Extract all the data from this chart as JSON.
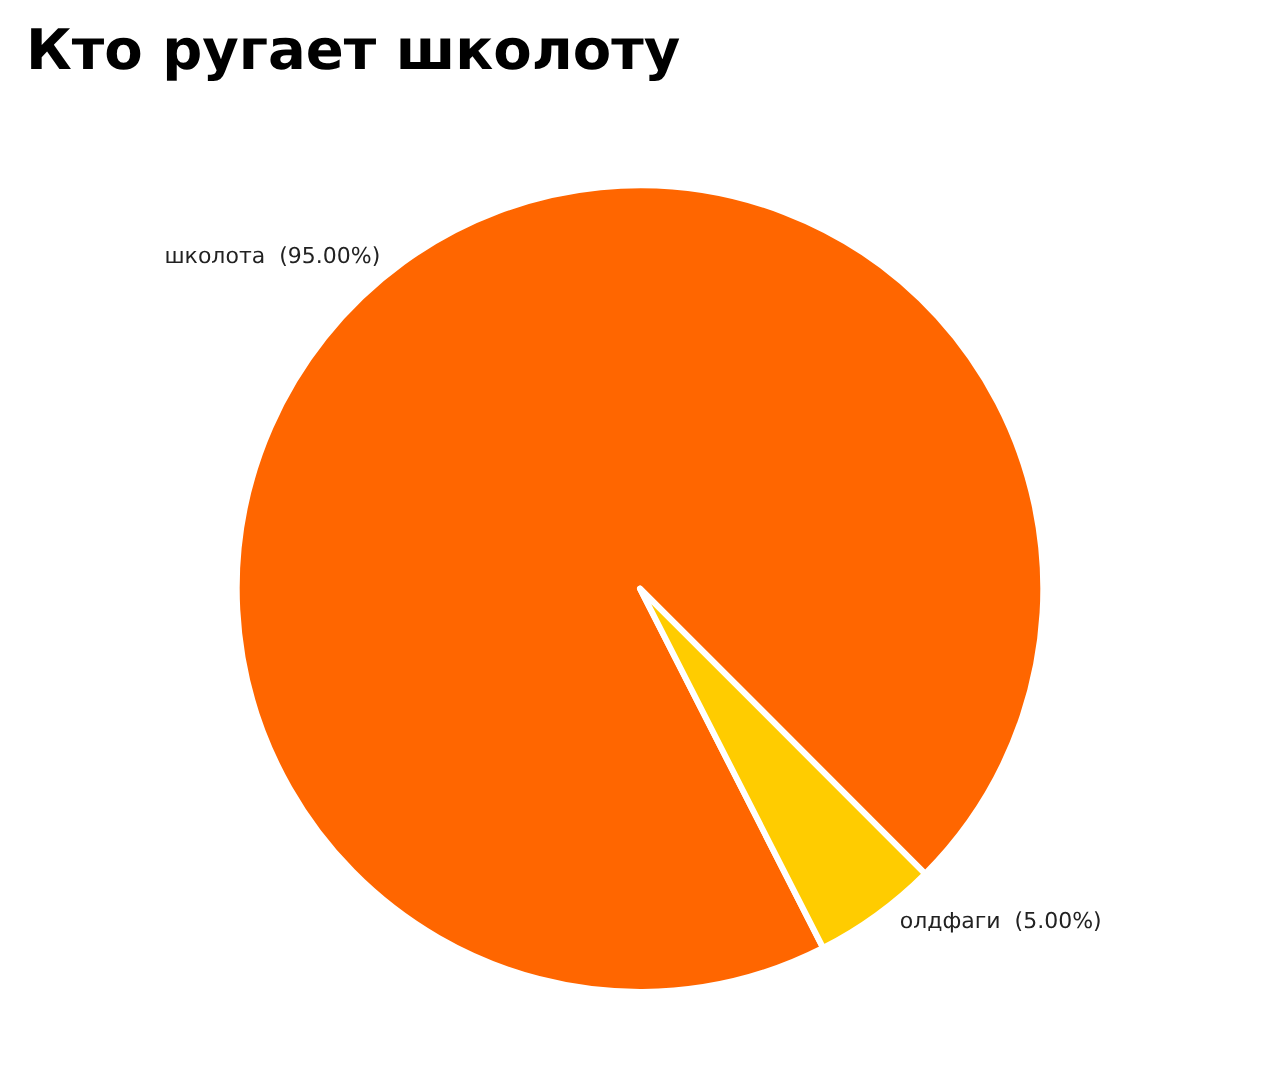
{
  "chart_data": {
    "type": "pie",
    "title": "Кто ругает школоту",
    "categories": [
      "школота",
      "олдфаги"
    ],
    "values": [
      95,
      5
    ],
    "value_labels": [
      "(95.00%)",
      "(5.00%)"
    ],
    "colors": [
      "#ff6600",
      "#ffcc00"
    ],
    "legend": false
  }
}
